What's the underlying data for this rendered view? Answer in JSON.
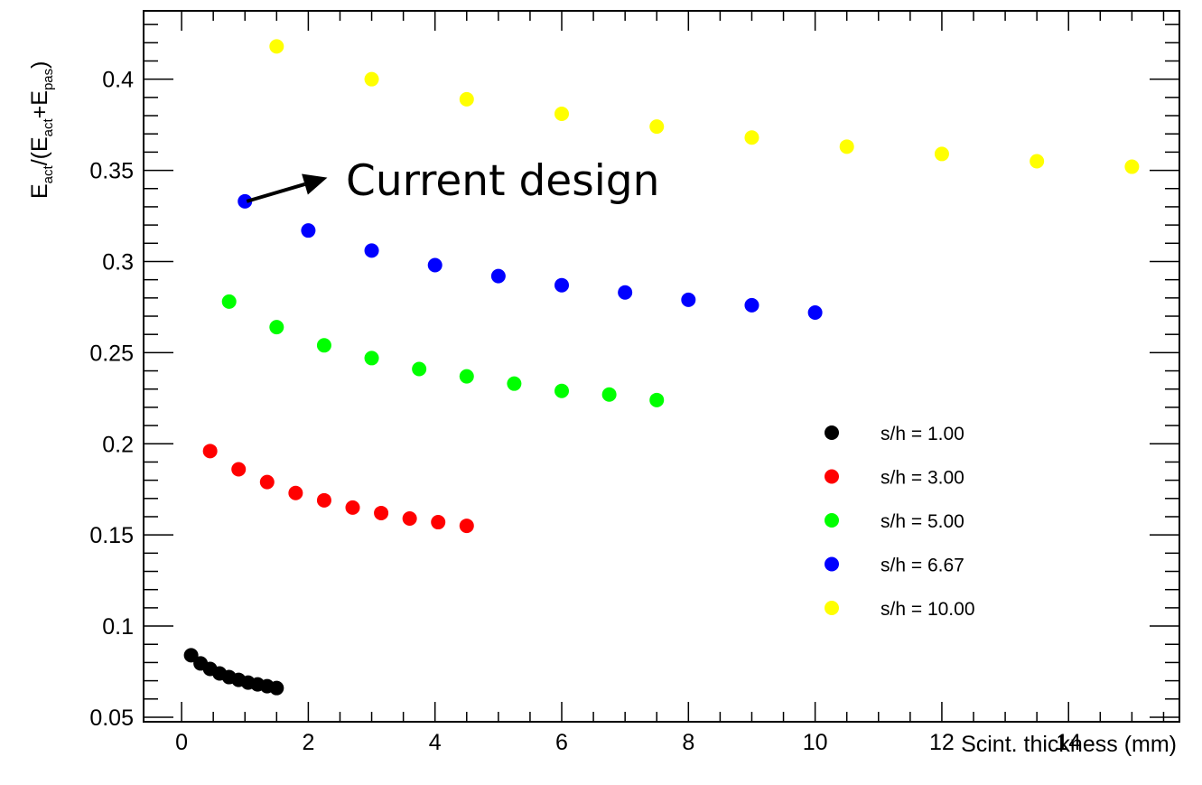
{
  "chart_data": {
    "type": "scatter",
    "title": "",
    "xlabel": "Scint. thickness (mm)",
    "ylabel": {
      "parts": [
        "E",
        "act",
        "/(E",
        "act",
        "+E",
        "pas",
        ")"
      ]
    },
    "xlim": [
      -0.6,
      15.75
    ],
    "ylim": [
      0.0475,
      0.4375
    ],
    "x_ticks": [
      "0",
      "2",
      "4",
      "6",
      "8",
      "10",
      "12",
      "14"
    ],
    "y_ticks": [
      "0.05",
      "0.1",
      "0.15",
      "0.2",
      "0.25",
      "0.3",
      "0.35",
      "0.4"
    ],
    "grid": false,
    "legend_placement": "right-center",
    "series": [
      {
        "name": "s/h = 1.00",
        "color": "#000000",
        "x": [
          0.15,
          0.3,
          0.45,
          0.6,
          0.75,
          0.9,
          1.05,
          1.2,
          1.35,
          1.5
        ],
        "y": [
          0.084,
          0.0795,
          0.0765,
          0.074,
          0.072,
          0.0705,
          0.069,
          0.068,
          0.067,
          0.066
        ]
      },
      {
        "name": "s/h = 3.00",
        "color": "#ff0000",
        "x": [
          0.45,
          0.9,
          1.35,
          1.8,
          2.25,
          2.7,
          3.15,
          3.6,
          4.05,
          4.5
        ],
        "y": [
          0.196,
          0.186,
          0.179,
          0.173,
          0.169,
          0.165,
          0.162,
          0.159,
          0.157,
          0.155
        ]
      },
      {
        "name": "s/h = 5.00",
        "color": "#00ff00",
        "x": [
          0.75,
          1.5,
          2.25,
          3.0,
          3.75,
          4.5,
          5.25,
          6.0,
          6.75,
          7.5
        ],
        "y": [
          0.278,
          0.264,
          0.254,
          0.247,
          0.241,
          0.237,
          0.233,
          0.229,
          0.227,
          0.224
        ]
      },
      {
        "name": "s/h = 6.67",
        "color": "#0000ff",
        "x": [
          1,
          2,
          3,
          4,
          5,
          6,
          7,
          8,
          9,
          10
        ],
        "y": [
          0.333,
          0.317,
          0.306,
          0.298,
          0.292,
          0.287,
          0.283,
          0.279,
          0.276,
          0.272
        ]
      },
      {
        "name": "s/h = 10.00",
        "color": "#ffff00",
        "x": [
          1.5,
          3.0,
          4.5,
          6.0,
          7.5,
          9.0,
          10.5,
          12.0,
          13.5,
          15.0
        ],
        "y": [
          0.418,
          0.4,
          0.389,
          0.381,
          0.374,
          0.368,
          0.363,
          0.359,
          0.355,
          0.352
        ]
      }
    ],
    "annotation": {
      "text": "Current design",
      "arrow_from": [
        1.0,
        0.333
      ],
      "arrow_to": [
        2.3,
        0.346
      ]
    }
  }
}
